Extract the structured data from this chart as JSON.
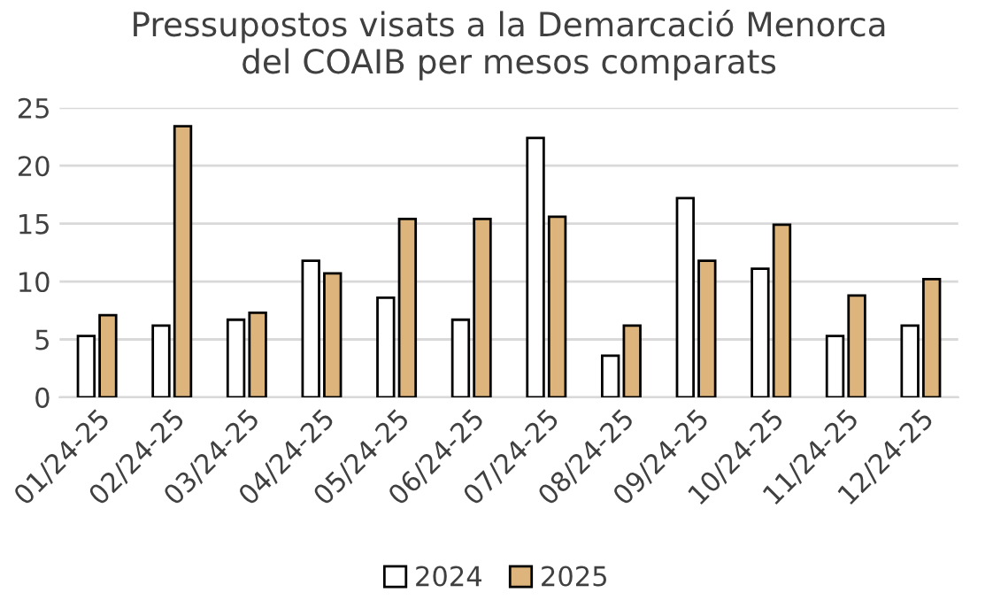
{
  "chart_data": {
    "type": "bar",
    "title": "Pressupostos visats a la Demarcació Menorca\ndel COAIB per mesos comparats",
    "categories": [
      "01/24-25",
      "02/24-25",
      "03/24-25",
      "04/24-25",
      "05/24-25",
      "06/24-25",
      "07/24-25",
      "08/24-25",
      "09/24-25",
      "10/24-25",
      "11/24-25",
      "12/24-25"
    ],
    "series": [
      {
        "name": "2024",
        "color": "#ffffff",
        "values": [
          5.3,
          6.2,
          6.7,
          11.8,
          8.6,
          6.7,
          22.4,
          3.6,
          17.2,
          11.1,
          5.3,
          6.2
        ]
      },
      {
        "name": "2025",
        "color": "#ddb47c",
        "values": [
          7.1,
          23.4,
          7.3,
          10.7,
          15.4,
          15.4,
          15.6,
          6.2,
          11.8,
          14.9,
          8.8,
          10.2
        ]
      }
    ],
    "ylim": [
      0,
      25
    ],
    "yticks": [
      0,
      5,
      10,
      15,
      20,
      25
    ],
    "grid": "y",
    "legend": "bottom"
  }
}
